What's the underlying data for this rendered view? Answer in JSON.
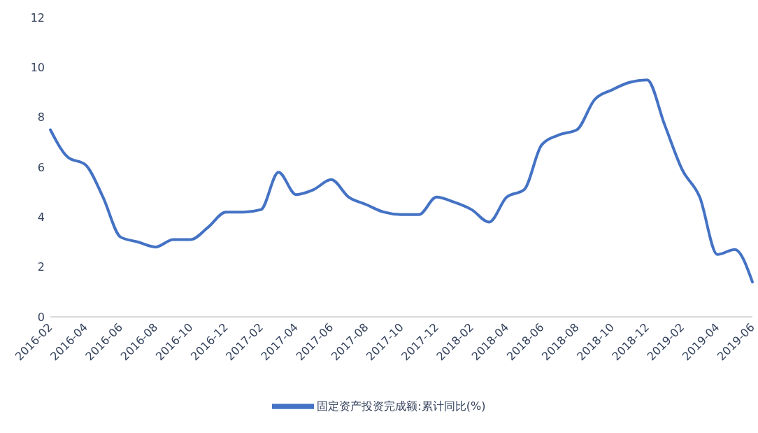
{
  "chart_data": {
    "type": "line",
    "categories": [
      "2016-02",
      null,
      "2016-04",
      null,
      "2016-06",
      null,
      "2016-08",
      null,
      "2016-10",
      null,
      "2016-12",
      null,
      "2017-02",
      null,
      "2017-04",
      null,
      "2017-06",
      null,
      "2017-08",
      null,
      "2017-10",
      null,
      "2017-12",
      null,
      "2018-02",
      null,
      "2018-04",
      null,
      "2018-06",
      null,
      "2018-08",
      null,
      "2018-10",
      null,
      "2018-12",
      null,
      "2019-02",
      null,
      "2019-04",
      null,
      "2019-06"
    ],
    "series": [
      {
        "name": "固定资产投资完成额:累计同比(%)",
        "color": "#4472c4",
        "values": [
          7.5,
          6.4,
          6.1,
          4.8,
          3.2,
          3.0,
          2.8,
          3.1,
          3.1,
          3.6,
          4.2,
          4.2,
          4.3,
          5.8,
          4.9,
          5.1,
          5.5,
          4.8,
          4.5,
          4.2,
          4.1,
          4.1,
          4.8,
          4.6,
          4.3,
          3.8,
          4.8,
          5.1,
          6.9,
          7.3,
          7.5,
          8.7,
          9.1,
          9.4,
          9.5,
          7.7,
          5.9,
          4.8,
          2.5,
          2.7,
          1.4
        ]
      }
    ],
    "ylim": [
      0,
      12
    ],
    "yticks": [
      0,
      2,
      4,
      6,
      8,
      10,
      12
    ],
    "grid": false,
    "legend": "bottom",
    "marker": "none",
    "line_style": "solid"
  }
}
